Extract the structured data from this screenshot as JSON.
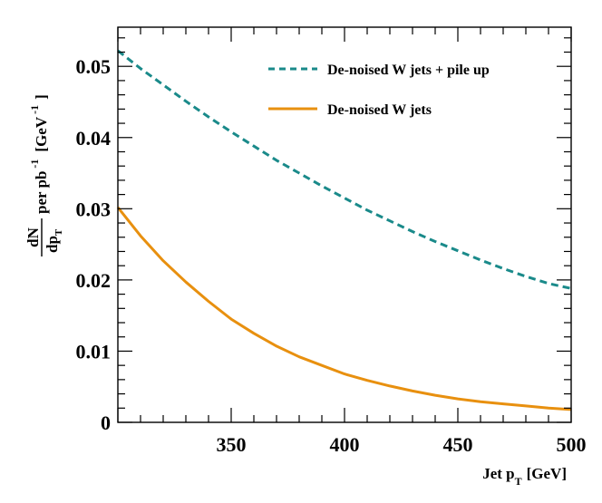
{
  "chart_data": {
    "type": "line",
    "title": "",
    "xlabel": {
      "main": "Jet p",
      "sub": "T",
      "unit": "[GeV]"
    },
    "ylabel": {
      "numerator": "dN",
      "denominator_main": "dp",
      "denominator_sub": "T",
      "per": "per pb",
      "per_sup": "-1",
      "unit_open": "[GeV",
      "unit_sup": "-1",
      "unit_close": "]"
    },
    "xlim": [
      300,
      500
    ],
    "ylim": [
      0,
      0.0555
    ],
    "xticks": [
      350,
      400,
      450,
      500
    ],
    "xtick_labels": [
      "350",
      "400",
      "450",
      "500"
    ],
    "yticks": [
      0,
      0.01,
      0.02,
      0.03,
      0.04,
      0.05
    ],
    "ytick_labels": [
      "0",
      "0.01",
      "0.02",
      "0.03",
      "0.04",
      "0.05"
    ],
    "x": [
      300,
      310,
      320,
      330,
      340,
      350,
      360,
      370,
      380,
      390,
      400,
      410,
      420,
      430,
      440,
      450,
      460,
      470,
      480,
      490,
      500
    ],
    "series": [
      {
        "name": "De-noised W jets + pile up",
        "color": "#1a8a8a",
        "style": "dashed",
        "values": [
          0.0522,
          0.0497,
          0.0474,
          0.0451,
          0.0429,
          0.0408,
          0.0388,
          0.0368,
          0.035,
          0.0332,
          0.0315,
          0.0298,
          0.0283,
          0.0268,
          0.0254,
          0.0241,
          0.0228,
          0.0216,
          0.0205,
          0.0195,
          0.0188
        ]
      },
      {
        "name": "De-noised W jets",
        "color": "#e8900f",
        "style": "solid",
        "values": [
          0.0302,
          0.0262,
          0.0227,
          0.0197,
          0.017,
          0.0145,
          0.0125,
          0.0107,
          0.0092,
          0.008,
          0.0068,
          0.0059,
          0.0051,
          0.0044,
          0.0038,
          0.0033,
          0.0029,
          0.0026,
          0.0023,
          0.002,
          0.0018
        ]
      }
    ],
    "legend_position": "top-right"
  }
}
